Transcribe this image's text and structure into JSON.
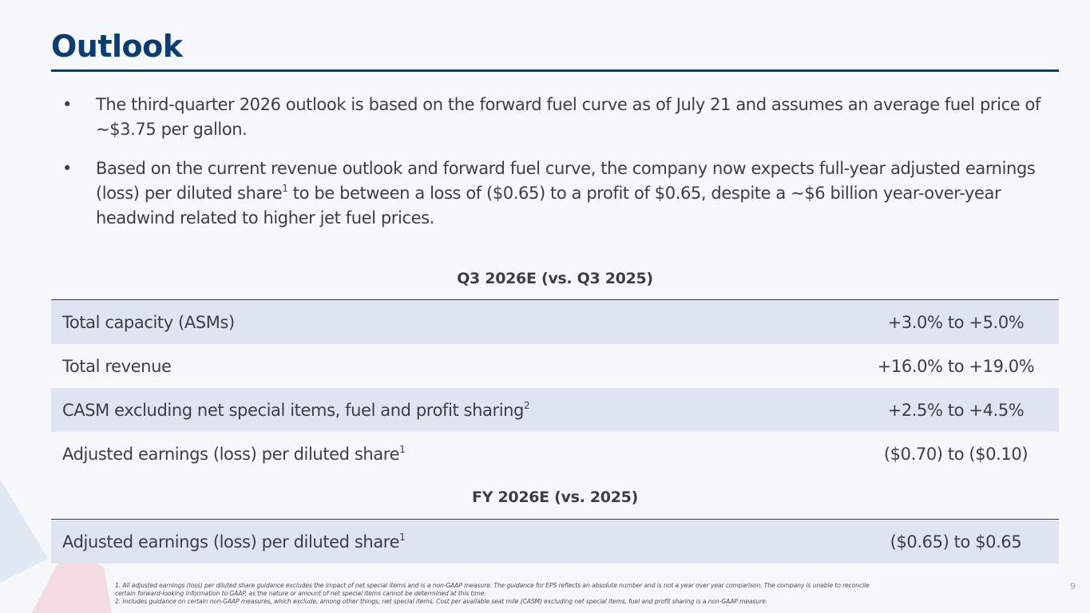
{
  "title": "Outlook",
  "bullets": [
    {
      "text_before": "The third-quarter 2026 outlook is based on the forward fuel curve as of July 21 and assumes an average fuel price of ~$3.75 per gallon.",
      "sup": "",
      "text_after": ""
    },
    {
      "text_before": "Based on the current revenue outlook and forward fuel curve, the company now expects full-year adjusted earnings (loss) per diluted share",
      "sup": "1",
      "text_after": " to be between a loss of ($0.65) to a profit of $0.65, despite a ~$6 billion year-over-year headwind related to higher jet fuel prices."
    }
  ],
  "bullet_glyph": "•",
  "q3_section": {
    "header": "Q3 2026E (vs. Q3 2025)",
    "rows": [
      {
        "label": "Total capacity (ASMs)",
        "sup": "",
        "value": "+3.0% to +5.0%"
      },
      {
        "label": "Total revenue",
        "sup": "",
        "value": "+16.0% to +19.0%"
      },
      {
        "label": "CASM excluding net special items, fuel and profit sharing",
        "sup": "2",
        "value": "+2.5% to +4.5%"
      },
      {
        "label": "Adjusted earnings (loss) per diluted share",
        "sup": "1",
        "value": "($0.70) to ($0.10)"
      }
    ]
  },
  "fy_section": {
    "header": "FY 2026E (vs. 2025)",
    "rows": [
      {
        "label": "Adjusted earnings (loss) per diluted share",
        "sup": "1",
        "value": "($0.65) to $0.65"
      }
    ]
  },
  "footnotes": {
    "line1": "1. All adjusted earnings (loss) per diluted share guidance excludes the impact of net special items and is a non-GAAP measure. The guidance for EPS reflects an absolute number and is not a year over year comparison. The company is unable to reconcile",
    "line2": "certain forward-looking information to GAAP, as the nature or amount of net special items cannot be determined at this time.",
    "line3": "2. Includes guidance on certain non-GAAP measures, which exclude, among other things, net special items. Cost per available seat mile (CASM) excluding net special items, fuel and profit sharing is a non-GAAP measure."
  },
  "page_number": "9",
  "colors": {
    "title": "#0a3d74",
    "row_shade": "#dfe4f2",
    "background": "#f6f7f9",
    "decor_blue": "#c9d7ef",
    "decor_red": "#f2c9cf"
  }
}
